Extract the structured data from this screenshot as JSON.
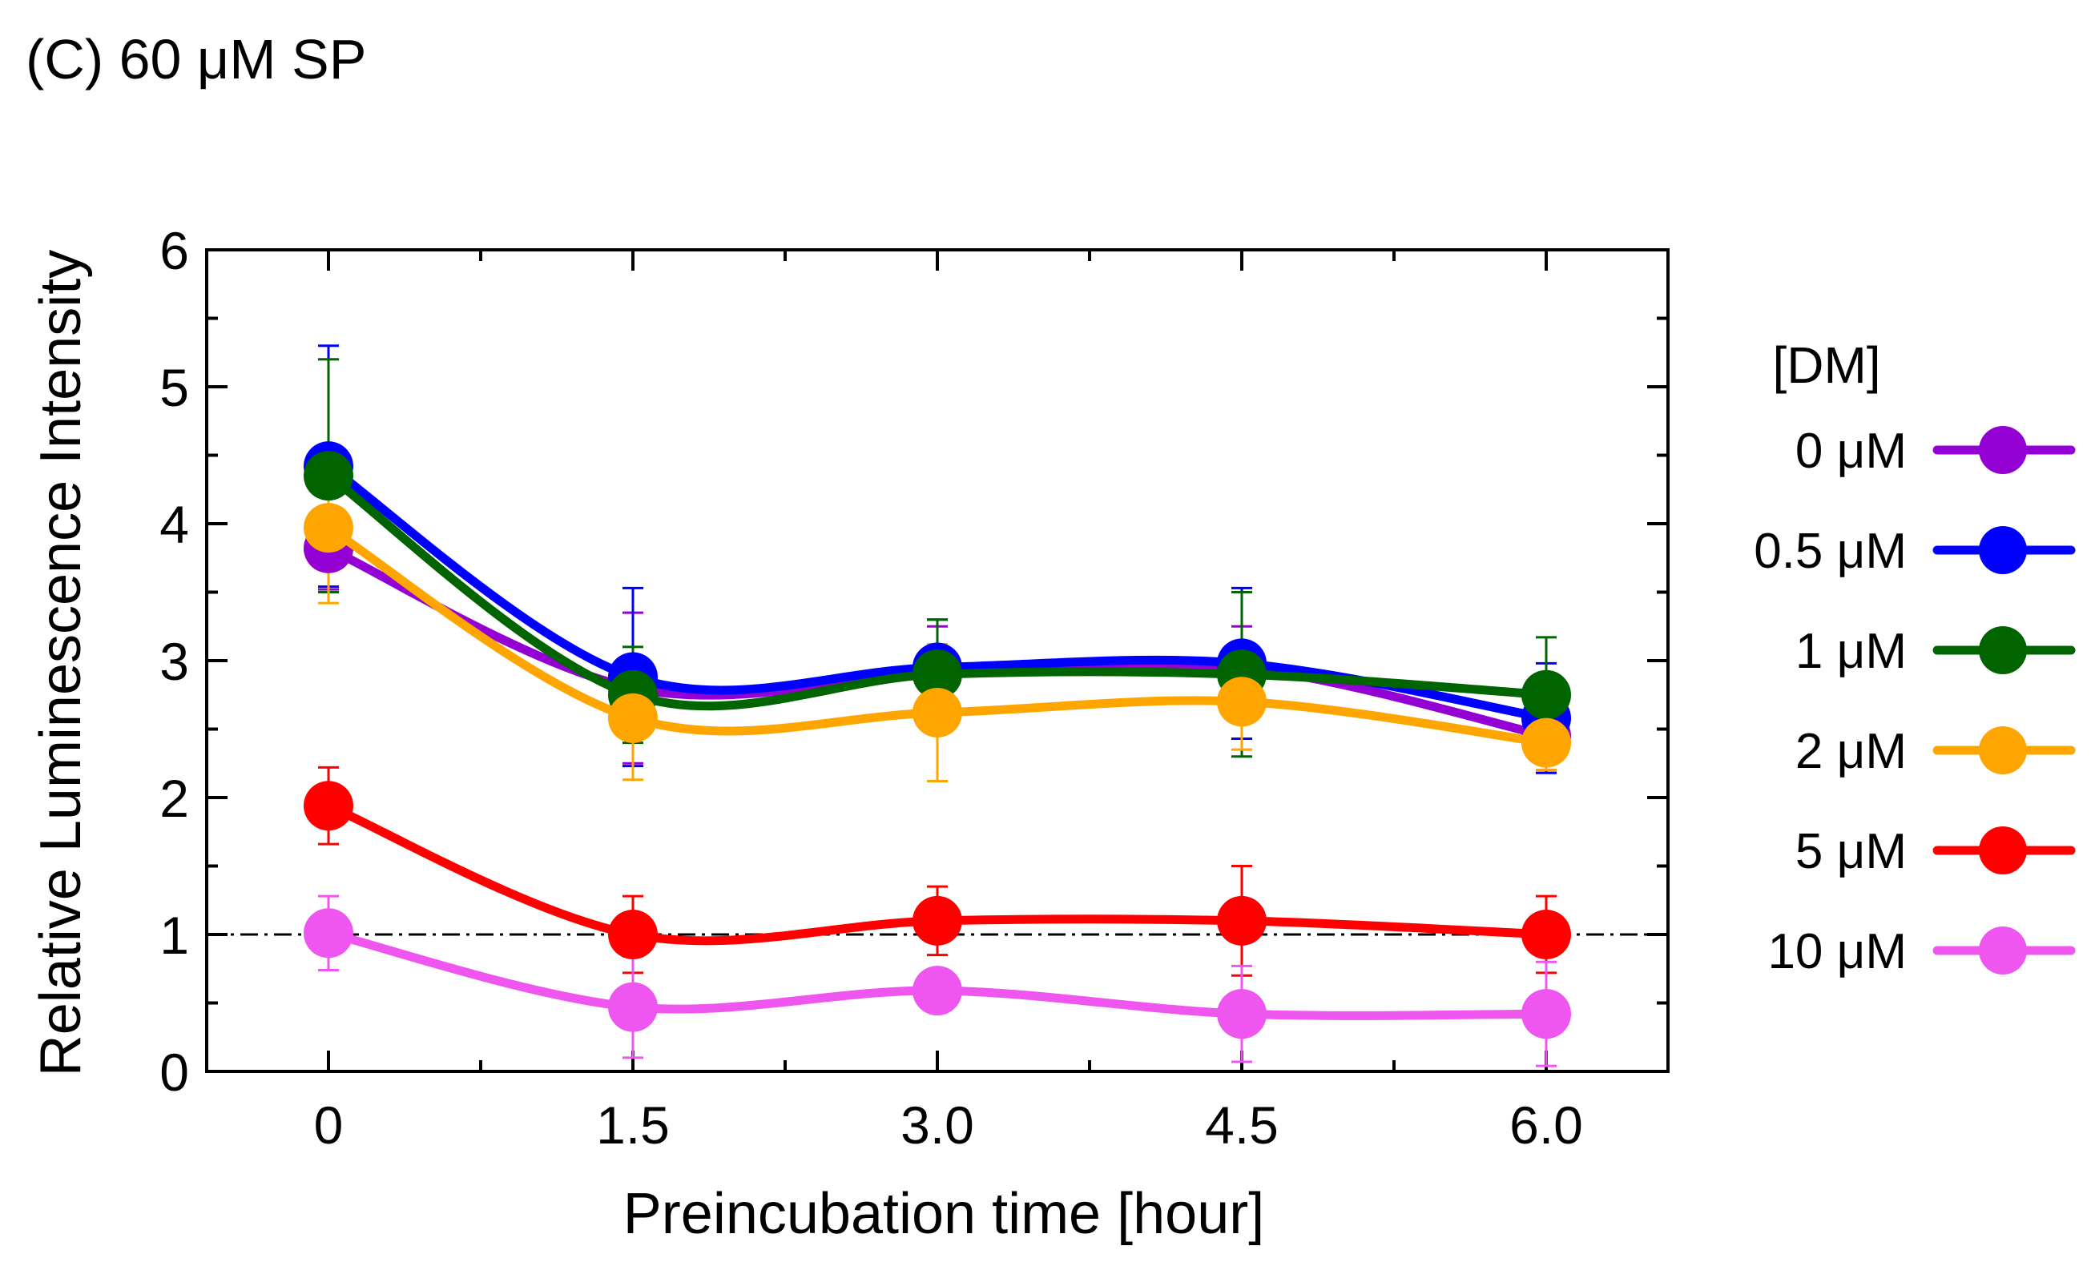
{
  "chart_data": {
    "type": "line",
    "title": "(C) 60 μM SP",
    "xlabel": "Preincubation time [hour]",
    "ylabel": "Relative Luminescence Intensity",
    "x": [
      0,
      1.5,
      3.0,
      4.5,
      6.0
    ],
    "x_tick_labels": [
      "0",
      "1.5",
      "3.0",
      "4.5",
      "6.0"
    ],
    "xlim": [
      -0.6,
      6.6
    ],
    "ylim": [
      0,
      6
    ],
    "y_ticks": [
      0,
      1,
      2,
      3,
      4,
      5,
      6
    ],
    "y_tick_labels": [
      "0",
      "1",
      "2",
      "3",
      "4",
      "5",
      "6"
    ],
    "reference_line": 1,
    "grid": false,
    "legend": {
      "title": "[DM]",
      "placement": "right"
    },
    "series": [
      {
        "name": "0 μM",
        "color": "#9400d3",
        "values": [
          3.82,
          2.8,
          2.9,
          2.95,
          2.45
        ],
        "errors": [
          0.3,
          0.55,
          0.35,
          0.3,
          0.25
        ]
      },
      {
        "name": "0.5 μM",
        "color": "#0000ff",
        "values": [
          4.42,
          2.88,
          2.95,
          2.98,
          2.58
        ],
        "errors": [
          0.88,
          0.65,
          0.35,
          0.55,
          0.4
        ]
      },
      {
        "name": "1 μM",
        "color": "#006400",
        "values": [
          4.35,
          2.75,
          2.9,
          2.9,
          2.75
        ],
        "errors": [
          0.85,
          0.35,
          0.4,
          0.6,
          0.42
        ]
      },
      {
        "name": "2 μM",
        "color": "#ffa500",
        "values": [
          3.97,
          2.58,
          2.62,
          2.7,
          2.4
        ],
        "errors": [
          0.55,
          0.45,
          0.5,
          0.35,
          0.2
        ]
      },
      {
        "name": "5 μM",
        "color": "#ff0000",
        "values": [
          1.94,
          1.0,
          1.1,
          1.1,
          1.0
        ],
        "errors": [
          0.28,
          0.28,
          0.25,
          0.4,
          0.28
        ]
      },
      {
        "name": "10 μM",
        "color": "#ef55ef",
        "values": [
          1.01,
          0.47,
          0.59,
          0.42,
          0.42
        ],
        "errors": [
          0.27,
          0.37,
          0.15,
          0.35,
          0.38
        ]
      }
    ]
  }
}
